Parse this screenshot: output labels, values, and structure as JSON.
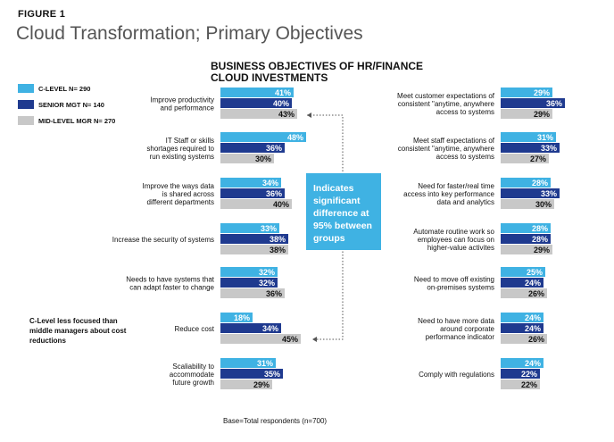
{
  "figure_label": "FIGURE 1",
  "title": "Cloud Transformation; Primary Objectives",
  "note_box": "Indicates significant difference at 95% between groups",
  "side_note": "C-Level less focused than middle managers about cost reductions",
  "base_note": "Base=Total respondents (n=700)",
  "colors": {
    "c_level": "#3fb2e3",
    "senior": "#1f3a8f",
    "mid": "#c8c8c8",
    "label_light": "#111111"
  },
  "chart_data": {
    "type": "bar",
    "title": "BUSINESS OBJECTIVES OF HR/FINANCE CLOUD INVESTMENTS",
    "legend": [
      {
        "name": "C-LEVEL",
        "n": "N= 290"
      },
      {
        "name": "SENIOR MGT",
        "n": "N= 140"
      },
      {
        "name": "MID-LEVEL MGR",
        "n": "N= 270"
      }
    ],
    "series_names": [
      "C-LEVEL",
      "SENIOR MGT",
      "MID-LEVEL MGR"
    ],
    "left_categories": [
      {
        "label": [
          "Improve productivity",
          "and performance"
        ],
        "values": [
          41,
          40,
          43
        ]
      },
      {
        "label": [
          "IT Staff or skills",
          "shortages required to",
          "run existing systems"
        ],
        "values": [
          48,
          36,
          30
        ]
      },
      {
        "label": [
          "Improve the ways data",
          "is shared across",
          "different departments"
        ],
        "values": [
          34,
          36,
          40
        ]
      },
      {
        "label": [
          "Increase the security of systems"
        ],
        "values": [
          33,
          38,
          38
        ]
      },
      {
        "label": [
          "Needs to have systems that",
          "can adapt faster to change"
        ],
        "values": [
          32,
          32,
          36
        ]
      },
      {
        "label": [
          "Reduce cost"
        ],
        "values": [
          18,
          34,
          45
        ]
      },
      {
        "label": [
          "Scaliability to",
          "accommodate",
          "future growth"
        ],
        "values": [
          31,
          35,
          29
        ]
      }
    ],
    "right_categories": [
      {
        "label": [
          "Meet customer expectations of",
          "consistent \"anytime, anywhere",
          "access to systems"
        ],
        "values": [
          29,
          36,
          29
        ]
      },
      {
        "label": [
          "Meet staff expectations of",
          "consistent \"anytime, anywhere",
          "access to systems"
        ],
        "values": [
          31,
          33,
          27
        ]
      },
      {
        "label": [
          "Need for faster/real time",
          "access into key performance",
          "data and analytics"
        ],
        "values": [
          28,
          33,
          30
        ]
      },
      {
        "label": [
          "Automate routine work so",
          "employees can focus on",
          "higher-value activites"
        ],
        "values": [
          28,
          28,
          29
        ]
      },
      {
        "label": [
          "Need to move off existing",
          "on-premises systems"
        ],
        "values": [
          25,
          24,
          26
        ]
      },
      {
        "label": [
          "Need to have more data",
          "around corporate",
          "performance indicator"
        ],
        "values": [
          24,
          24,
          26
        ]
      },
      {
        "label": [
          "Comply with regulations"
        ],
        "values": [
          24,
          22,
          22
        ]
      }
    ],
    "value_suffix": "%"
  }
}
